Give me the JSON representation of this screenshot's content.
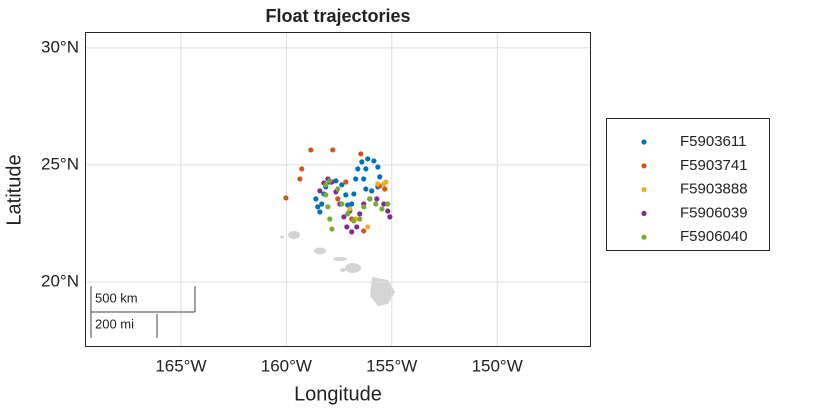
{
  "chart_data": {
    "type": "scatter",
    "title": "Float trajectories",
    "x_label": "Longitude",
    "y_label": "Latitude",
    "xlim": [
      -169.55,
      -145.55
    ],
    "ylim": [
      17.22,
      30.68
    ],
    "xticks": [
      {
        "value": -165,
        "label": "165°W"
      },
      {
        "value": -160,
        "label": "160°W"
      },
      {
        "value": -155,
        "label": "155°W"
      },
      {
        "value": -150,
        "label": "150°W"
      }
    ],
    "yticks": [
      {
        "value": 20,
        "label": "20°N"
      },
      {
        "value": 25,
        "label": "25°N"
      },
      {
        "value": 30,
        "label": "30°N"
      }
    ],
    "grid": true,
    "legend": "outside-right",
    "scale_bar": [
      "500 km",
      "200 mi"
    ],
    "series": [
      {
        "name": "F5903611",
        "color": "#0072BD",
        "x": [
          -158.6,
          -158.51,
          -158.41,
          -158.32,
          -158.22,
          -158.13,
          -157.94,
          -157.65,
          -157.37,
          -157.18,
          -157.09,
          -156.99,
          -156.9,
          -156.8,
          -156.71,
          -156.61,
          -156.42,
          -156.14,
          -155.85,
          -155.66,
          -155.57,
          -155.66,
          -155.95,
          -156.23,
          -156.33,
          -156.23
        ],
        "values": [
          23.55,
          23.21,
          22.99,
          23.33,
          23.76,
          24.06,
          24.27,
          24.32,
          24.15,
          23.72,
          23.29,
          23.03,
          23.33,
          23.76,
          24.4,
          24.83,
          25.13,
          25.26,
          25.17,
          24.91,
          24.49,
          24.06,
          23.89,
          23.97,
          24.4,
          24.83
        ]
      },
      {
        "name": "F5903741",
        "color": "#D95319",
        "x": [
          -160.02,
          -159.27,
          -158.84,
          -157.8,
          -156.47,
          -157.18,
          -157.56,
          -156.9,
          -156.33,
          -155.57,
          -155.33,
          -159.36
        ],
        "values": [
          23.59,
          24.83,
          25.64,
          25.64,
          25.47,
          24.27,
          23.55,
          22.69,
          22.18,
          24.1,
          23.97,
          24.4
        ]
      },
      {
        "name": "F5903888",
        "color": "#EDB120",
        "x": [
          -155.66,
          -155.38,
          -155.28,
          -156.14,
          -156.99,
          -156.71
        ],
        "values": [
          24.19,
          24.19,
          24.27,
          22.35,
          23.12,
          22.69
        ]
      },
      {
        "name": "F5906039",
        "color": "#7E2F8E",
        "x": [
          -158.41,
          -158.22,
          -158.03,
          -157.84,
          -157.65,
          -157.46,
          -157.27,
          -157.13,
          -156.9,
          -156.66,
          -156.52,
          -156.33,
          -156.04,
          -155.71,
          -155.38,
          -155.19,
          -155.09
        ],
        "values": [
          23.89,
          24.23,
          24.4,
          24.27,
          23.85,
          23.33,
          22.78,
          22.35,
          22.14,
          22.35,
          22.91,
          23.33,
          23.55,
          23.55,
          23.33,
          23.03,
          22.78
        ]
      },
      {
        "name": "F5906040",
        "color": "#77AC30",
        "x": [
          -157.84,
          -157.94,
          -158.03,
          -158.13,
          -158.13,
          -157.94,
          -157.56,
          -157.37,
          -157.09,
          -156.8,
          -156.52,
          -156.33,
          -156.04,
          -155.76,
          -155.47,
          -155.19
        ],
        "values": [
          22.26,
          22.69,
          23.21,
          23.72,
          24.15,
          24.32,
          23.97,
          23.33,
          22.91,
          22.61,
          22.69,
          23.21,
          23.55,
          23.33,
          23.12,
          23.33
        ]
      }
    ]
  }
}
